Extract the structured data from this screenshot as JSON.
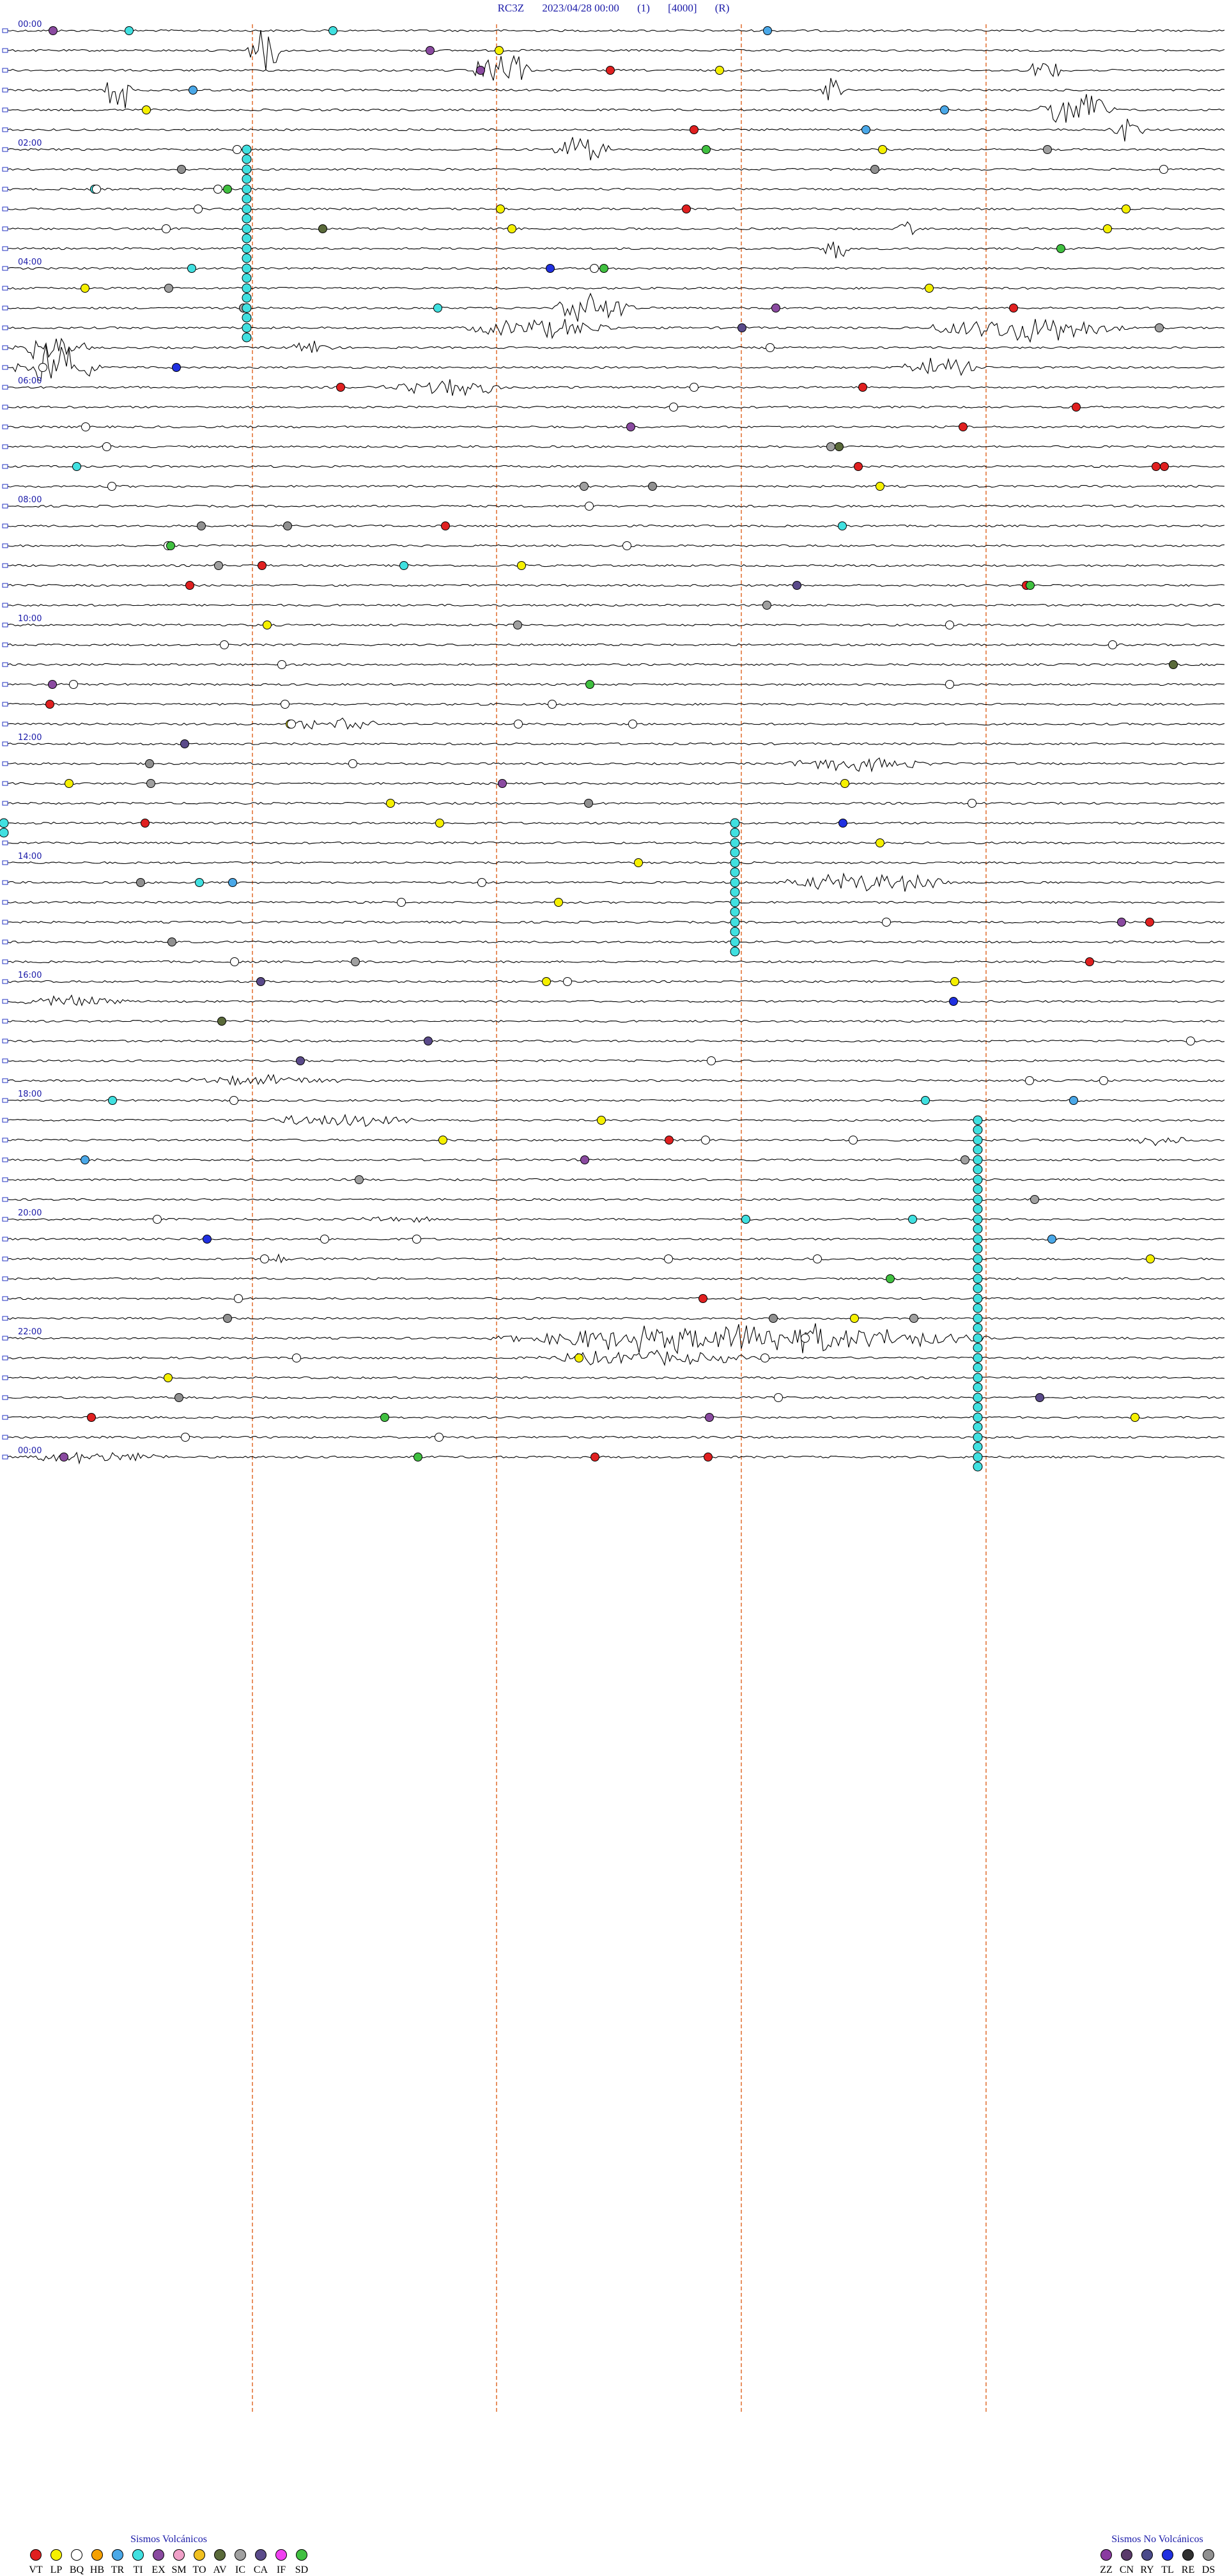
{
  "header": {
    "station": "RC3Z",
    "datetime": "2023/04/28 00:00",
    "channel": "(1)",
    "scale": "[4000]",
    "mode": "(R)"
  },
  "chart_data": {
    "type": "helicorder",
    "hour_labels": [
      "00:00",
      "02:00",
      "04:00",
      "06:00",
      "08:00",
      "10:00",
      "12:00",
      "14:00",
      "16:00",
      "18:00",
      "20:00",
      "22:00",
      "00:00"
    ],
    "traces_per_hour": 6,
    "grid": true,
    "legend_placement": "bottom",
    "trace_color": "#000000",
    "label_color": "#1a1aa8",
    "marker_line_color": "#e89060"
  },
  "legend_volcanic": {
    "title": "Sismos Volcánicos",
    "items": [
      {
        "code": "VT",
        "color": "#e02020"
      },
      {
        "code": "LP",
        "color": "#f5f000"
      },
      {
        "code": "BQ",
        "color": "#ffffff"
      },
      {
        "code": "HB",
        "color": "#f5a000"
      },
      {
        "code": "TR",
        "color": "#4aa8e8"
      },
      {
        "code": "TI",
        "color": "#40e0e0"
      },
      {
        "code": "EX",
        "color": "#8a4aa0"
      },
      {
        "code": "SM",
        "color": "#f0a0c8"
      },
      {
        "code": "TO",
        "color": "#f0c020"
      },
      {
        "code": "AV",
        "color": "#5a6a3a"
      },
      {
        "code": "IC",
        "color": "#a0a0a0"
      },
      {
        "code": "CA",
        "color": "#5a4a8a"
      },
      {
        "code": "IF",
        "color": "#f040f0"
      },
      {
        "code": "SD",
        "color": "#40c040"
      }
    ]
  },
  "legend_nonvolcanic": {
    "title": "Sismos No Volcánicos",
    "items": [
      {
        "code": "ZZ",
        "color": "#8a3aa0"
      },
      {
        "code": "CN",
        "color": "#5a3a6a"
      },
      {
        "code": "RY",
        "color": "#4a4a8a"
      },
      {
        "code": "TL",
        "color": "#2030e0"
      },
      {
        "code": "RE",
        "color": "#303030"
      },
      {
        "code": "DS",
        "color": "#909090"
      }
    ]
  }
}
